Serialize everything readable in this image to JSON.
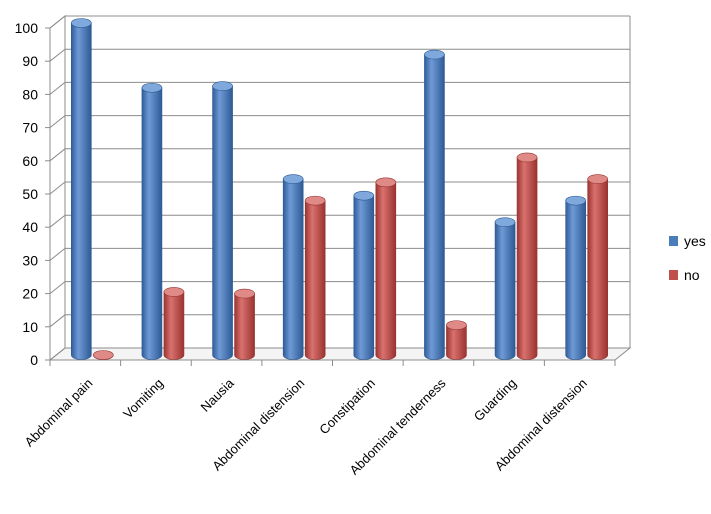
{
  "chart_data": {
    "type": "bar",
    "title": "",
    "xlabel": "",
    "ylabel": "",
    "ylim": [
      0,
      100
    ],
    "yticks": [
      0,
      10,
      20,
      30,
      40,
      50,
      60,
      70,
      80,
      90,
      100
    ],
    "grid": true,
    "legend_position": "right",
    "categories": [
      "Abdominal pain",
      "Vomiting",
      "Nausia",
      "Abdominal distension",
      "Constipation",
      "Abdominal tenderness",
      "Guarding",
      "Abdominal distension"
    ],
    "series": [
      {
        "name": "yes",
        "color": "#4a7ebb",
        "values": [
          100,
          80.5,
          81,
          53,
          48,
          90.5,
          40,
          46.5
        ]
      },
      {
        "name": "no",
        "color": "#c0504d",
        "values": [
          0,
          19,
          18.5,
          46.5,
          52,
          9,
          59.5,
          53
        ]
      }
    ]
  }
}
